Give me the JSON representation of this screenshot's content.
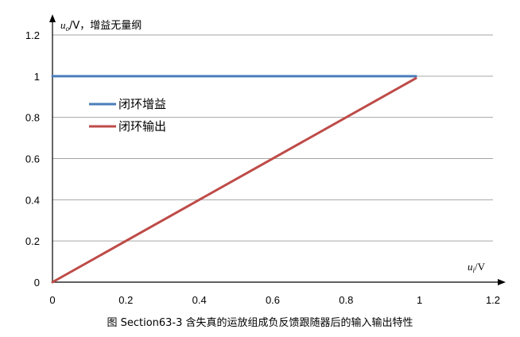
{
  "chart_data": {
    "type": "line",
    "title": "",
    "caption": "图 Section63-3  含失真的运放组成负反馈跟随器后的输入输出特性",
    "xlabel": {
      "var": "u",
      "sub": "i",
      "unit": "/V"
    },
    "ylabel": {
      "var": "u",
      "sub": "o",
      "unit": "/V，增益无量纲"
    },
    "xlim": [
      0,
      1.2
    ],
    "ylim": [
      0,
      1.2
    ],
    "x_ticks": [
      "0",
      "0.2",
      "0.4",
      "0.6",
      "0.8",
      "1",
      "1.2"
    ],
    "y_ticks": [
      "0",
      "0.2",
      "0.4",
      "0.6",
      "0.8",
      "1",
      "1.2"
    ],
    "grid": "horizontal",
    "legend_position": "upper-left",
    "series": [
      {
        "name": "闭环增益",
        "color": "#4a7ebb",
        "x": [
          0,
          0.99
        ],
        "y": [
          1,
          1
        ]
      },
      {
        "name": "闭环输出",
        "color": "#be4b48",
        "x": [
          0,
          0.99
        ],
        "y": [
          0,
          0.99
        ]
      }
    ]
  }
}
